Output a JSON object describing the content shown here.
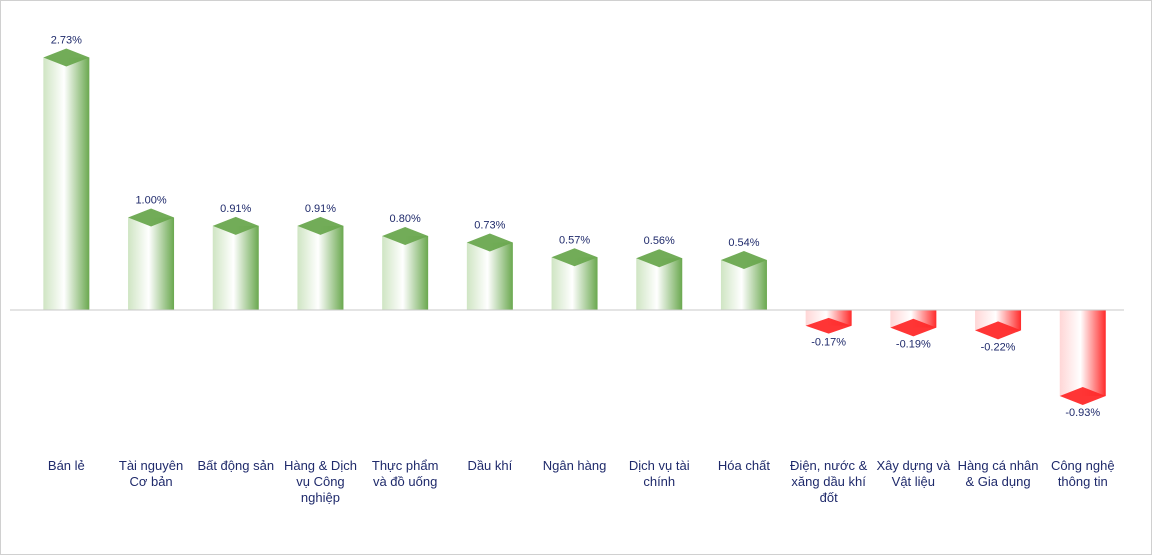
{
  "chart_data": {
    "type": "bar",
    "title": "",
    "xlabel": "",
    "ylabel": "",
    "ylim": [
      -1.0,
      3.0
    ],
    "grid": false,
    "legend": "none",
    "categories": [
      [
        "Bán lẻ"
      ],
      [
        "Tài nguyên",
        "Cơ bản"
      ],
      [
        "Bất động sản"
      ],
      [
        "Hàng & Dịch",
        "vụ Công",
        "nghiệp"
      ],
      [
        "Thực phẩm",
        "và đồ uống"
      ],
      [
        "Dầu khí"
      ],
      [
        "Ngân hàng"
      ],
      [
        "Dịch vụ tài",
        "chính"
      ],
      [
        "Hóa chất"
      ],
      [
        "Điện, nước &",
        "xăng dầu khí",
        "đốt"
      ],
      [
        "Xây dựng và",
        "Vật liệu"
      ],
      [
        "Hàng cá nhân",
        "& Gia dụng"
      ],
      [
        "Công nghệ",
        "thông tin"
      ]
    ],
    "values": [
      2.73,
      1.0,
      0.91,
      0.91,
      0.8,
      0.73,
      0.57,
      0.56,
      0.54,
      -0.17,
      -0.19,
      -0.22,
      -0.93
    ],
    "value_labels": [
      "2.73%",
      "1.00%",
      "0.91%",
      "0.91%",
      "0.80%",
      "0.73%",
      "0.57%",
      "0.56%",
      "0.54%",
      "-0.17%",
      "-0.19%",
      "-0.22%",
      "-0.93%"
    ],
    "colors": {
      "positive": "#6aa84f",
      "positive_light": "#f2f8ee",
      "negative": "#ff2a2a",
      "negative_light": "#fff0f0",
      "label": "#1f2a6b",
      "axis": "#c8c8c8"
    }
  }
}
